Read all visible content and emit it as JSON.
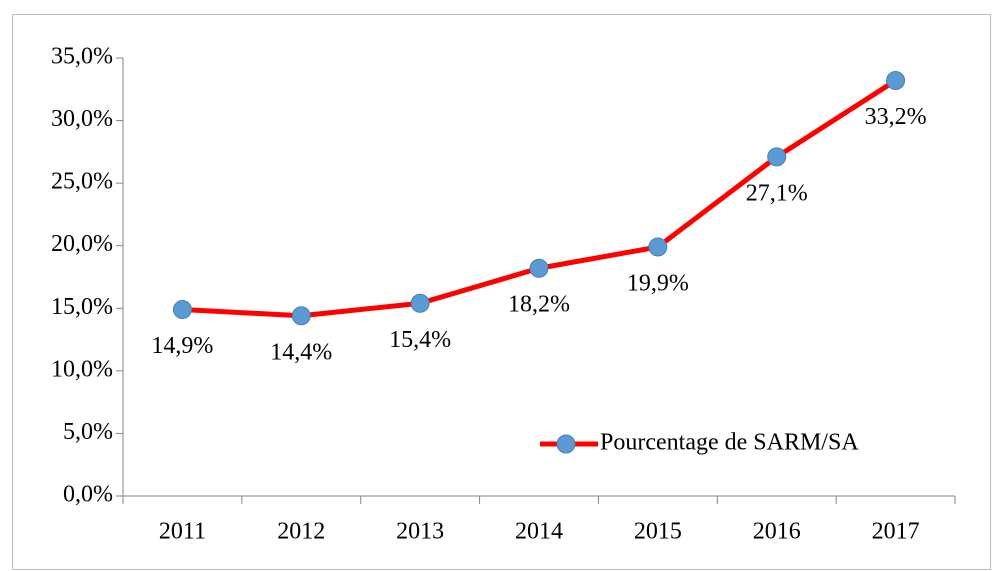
{
  "chart_data": {
    "type": "line",
    "categories": [
      "2011",
      "2012",
      "2013",
      "2014",
      "2015",
      "2016",
      "2017"
    ],
    "series": [
      {
        "name": "Pourcentage de SARM/SA",
        "color": "#ff0000",
        "marker_color": "#5b9bd5",
        "values": [
          14.9,
          14.4,
          15.4,
          18.2,
          19.9,
          27.1,
          33.2
        ],
        "value_labels": [
          "14,9%",
          "14,4%",
          "15,4%",
          "18,2%",
          "19,9%",
          "27,1%",
          "33,2%"
        ]
      }
    ],
    "ylim": [
      0,
      35
    ],
    "yticks": [
      {
        "value": 0,
        "label": "0,0%"
      },
      {
        "value": 5,
        "label": "5,0%"
      },
      {
        "value": 10,
        "label": "10,0%"
      },
      {
        "value": 15,
        "label": "15,0%"
      },
      {
        "value": 20,
        "label": "20,0%"
      },
      {
        "value": 25,
        "label": "25,0%"
      },
      {
        "value": 30,
        "label": "30,0%"
      },
      {
        "value": 35,
        "label": "35,0%"
      }
    ],
    "legend": "lower right"
  }
}
